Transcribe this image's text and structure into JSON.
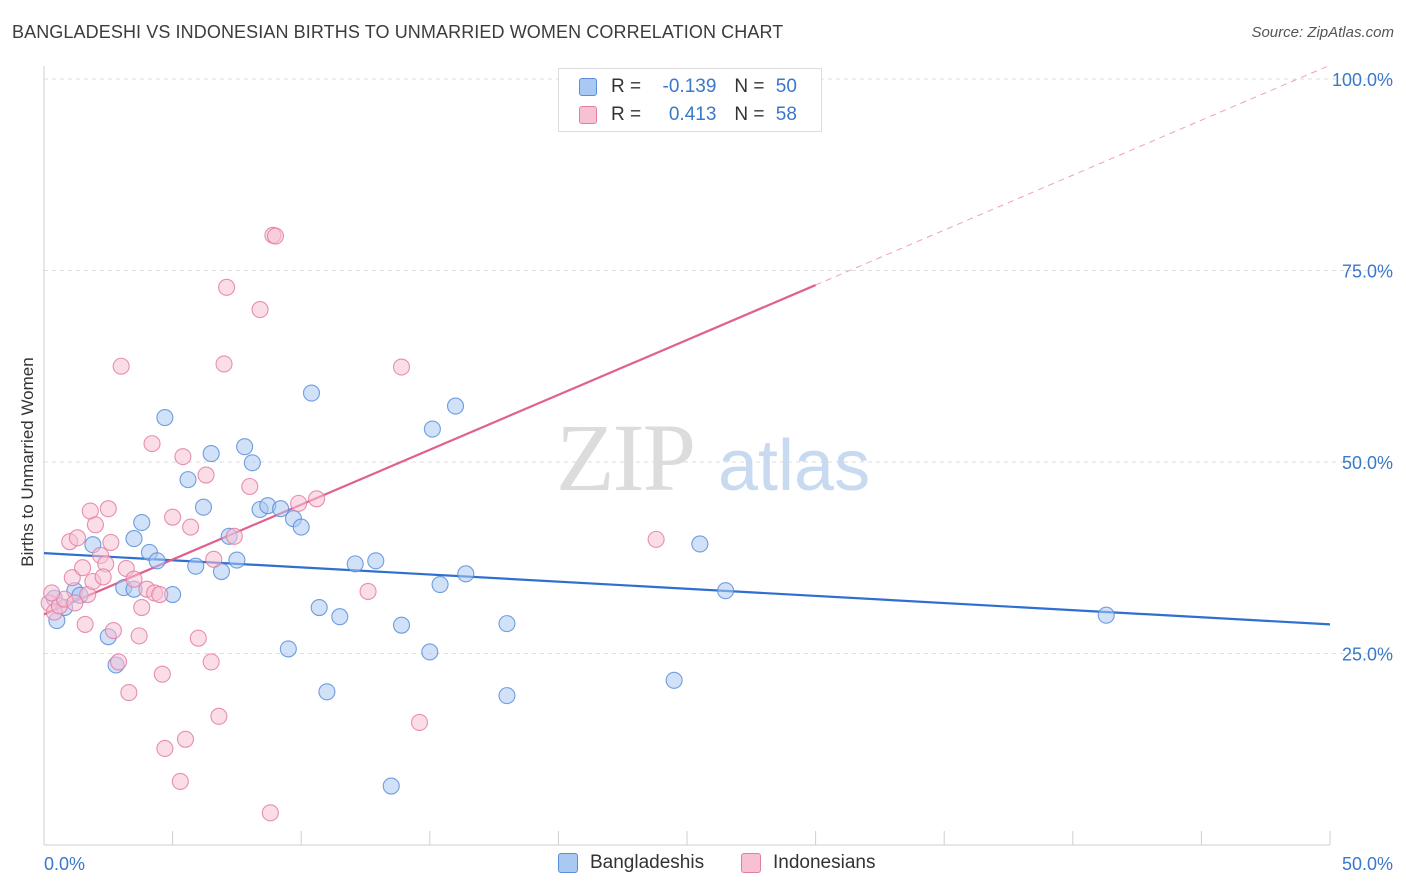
{
  "title": "BANGLADESHI VS INDONESIAN BIRTHS TO UNMARRIED WOMEN CORRELATION CHART",
  "source": "Source: ZipAtlas.com",
  "watermark": {
    "zip": "ZIP",
    "atlas": "atlas"
  },
  "legend_top": {
    "rows": [
      {
        "r_label": "R =",
        "r_value": "-0.139",
        "n_label": "N =",
        "n_value": "50",
        "color": "#a9c8f2",
        "border": "#5b8ed8"
      },
      {
        "r_label": "R =",
        "r_value": "0.413",
        "n_label": "N =",
        "n_value": "58",
        "color": "#f7c1d3",
        "border": "#e27ea3"
      }
    ]
  },
  "legend_bottom": [
    {
      "label": "Bangladeshis",
      "color": "#a9c8f2",
      "border": "#5b8ed8"
    },
    {
      "label": "Indonesians",
      "color": "#f7c1d3",
      "border": "#e27ea3"
    }
  ],
  "chart_data": {
    "type": "scatter",
    "title": "BANGLADESHI VS INDONESIAN BIRTHS TO UNMARRIED WOMEN CORRELATION CHART",
    "xlabel": "",
    "ylabel": "Births to Unmarried Women",
    "xlim": [
      0,
      50
    ],
    "ylim": [
      0,
      100
    ],
    "x_tick_labels": [
      "0.0%",
      "50.0%"
    ],
    "y_tick_values": [
      25,
      50,
      75,
      100
    ],
    "y_tick_labels": [
      "25.0%",
      "50.0%",
      "75.0%",
      "100.0%"
    ],
    "grid": "horizontal dashed",
    "legend": "bottom",
    "series": [
      {
        "name": "Bangladeshis",
        "color": "#5b8ed8",
        "fill": "#a9c8f2",
        "line_color": "#2f6fcf",
        "trend": {
          "x0": 0,
          "y0": 38.1,
          "x1": 50,
          "y1": 28.8
        },
        "points": [
          [
            0.4,
            32.2
          ],
          [
            0.5,
            29.3
          ],
          [
            0.8,
            31.0
          ],
          [
            1.2,
            33.2
          ],
          [
            1.4,
            32.6
          ],
          [
            1.9,
            39.2
          ],
          [
            2.5,
            27.2
          ],
          [
            2.8,
            23.5
          ],
          [
            3.1,
            33.6
          ],
          [
            3.5,
            33.4
          ],
          [
            3.8,
            42.1
          ],
          [
            4.1,
            38.2
          ],
          [
            4.4,
            37.1
          ],
          [
            4.7,
            55.8
          ],
          [
            5.0,
            32.7
          ],
          [
            5.6,
            47.7
          ],
          [
            5.9,
            36.4
          ],
          [
            6.2,
            44.1
          ],
          [
            6.5,
            51.1
          ],
          [
            6.9,
            35.7
          ],
          [
            7.2,
            40.3
          ],
          [
            7.5,
            37.2
          ],
          [
            7.8,
            52.0
          ],
          [
            8.1,
            49.9
          ],
          [
            8.4,
            43.8
          ],
          [
            8.7,
            44.3
          ],
          [
            9.2,
            43.9
          ],
          [
            9.5,
            25.6
          ],
          [
            9.7,
            42.6
          ],
          [
            10.0,
            41.5
          ],
          [
            10.4,
            59.0
          ],
          [
            10.7,
            31.0
          ],
          [
            11.0,
            20.0
          ],
          [
            11.5,
            29.8
          ],
          [
            12.1,
            36.7
          ],
          [
            12.9,
            37.1
          ],
          [
            13.5,
            7.7
          ],
          [
            13.9,
            28.7
          ],
          [
            15.0,
            25.2
          ],
          [
            15.1,
            54.3
          ],
          [
            15.4,
            34.0
          ],
          [
            16.0,
            57.3
          ],
          [
            16.4,
            35.4
          ],
          [
            18.0,
            19.5
          ],
          [
            18.0,
            28.9
          ],
          [
            24.5,
            21.5
          ],
          [
            25.5,
            39.3
          ],
          [
            26.5,
            33.2
          ],
          [
            41.3,
            30.0
          ],
          [
            3.5,
            40.0
          ]
        ]
      },
      {
        "name": "Indonesians",
        "color": "#e27ea3",
        "fill": "#f7c1d3",
        "line_color": "#e0608f",
        "trend": {
          "x0": 0,
          "y0": 30.1,
          "x1": 30,
          "y1": 73.1
        },
        "trend_dashed": {
          "x0": 30,
          "y0": 73.1,
          "x1": 50,
          "y1": 101.8
        },
        "points": [
          [
            0.2,
            31.6
          ],
          [
            0.4,
            30.4
          ],
          [
            0.6,
            31.2
          ],
          [
            0.8,
            32.1
          ],
          [
            1.0,
            39.6
          ],
          [
            1.1,
            34.9
          ],
          [
            1.3,
            40.1
          ],
          [
            1.5,
            36.2
          ],
          [
            1.6,
            28.8
          ],
          [
            1.7,
            32.7
          ],
          [
            1.8,
            43.6
          ],
          [
            1.9,
            34.4
          ],
          [
            2.0,
            41.8
          ],
          [
            2.2,
            37.8
          ],
          [
            2.4,
            36.7
          ],
          [
            2.5,
            43.9
          ],
          [
            2.6,
            39.5
          ],
          [
            2.7,
            28.0
          ],
          [
            2.9,
            23.9
          ],
          [
            3.0,
            62.5
          ],
          [
            3.2,
            36.1
          ],
          [
            3.3,
            19.9
          ],
          [
            3.5,
            34.7
          ],
          [
            3.7,
            27.3
          ],
          [
            3.8,
            31.0
          ],
          [
            4.0,
            33.4
          ],
          [
            4.2,
            52.4
          ],
          [
            4.3,
            32.9
          ],
          [
            4.5,
            32.7
          ],
          [
            4.6,
            22.3
          ],
          [
            4.7,
            12.6
          ],
          [
            5.0,
            42.8
          ],
          [
            5.3,
            8.3
          ],
          [
            5.4,
            50.7
          ],
          [
            5.5,
            13.8
          ],
          [
            5.7,
            41.5
          ],
          [
            6.0,
            27.0
          ],
          [
            6.3,
            48.3
          ],
          [
            6.5,
            23.9
          ],
          [
            6.6,
            37.3
          ],
          [
            6.8,
            16.8
          ],
          [
            7.0,
            62.8
          ],
          [
            7.1,
            72.8
          ],
          [
            7.4,
            40.3
          ],
          [
            8.0,
            46.8
          ],
          [
            8.4,
            69.9
          ],
          [
            8.8,
            4.2
          ],
          [
            8.9,
            79.6
          ],
          [
            9.0,
            79.5
          ],
          [
            9.9,
            44.6
          ],
          [
            10.6,
            45.2
          ],
          [
            12.6,
            33.1
          ],
          [
            13.9,
            62.4
          ],
          [
            14.6,
            16.0
          ],
          [
            23.8,
            39.9
          ],
          [
            0.3,
            32.9
          ],
          [
            1.2,
            31.6
          ],
          [
            2.3,
            35.0
          ]
        ]
      }
    ]
  }
}
